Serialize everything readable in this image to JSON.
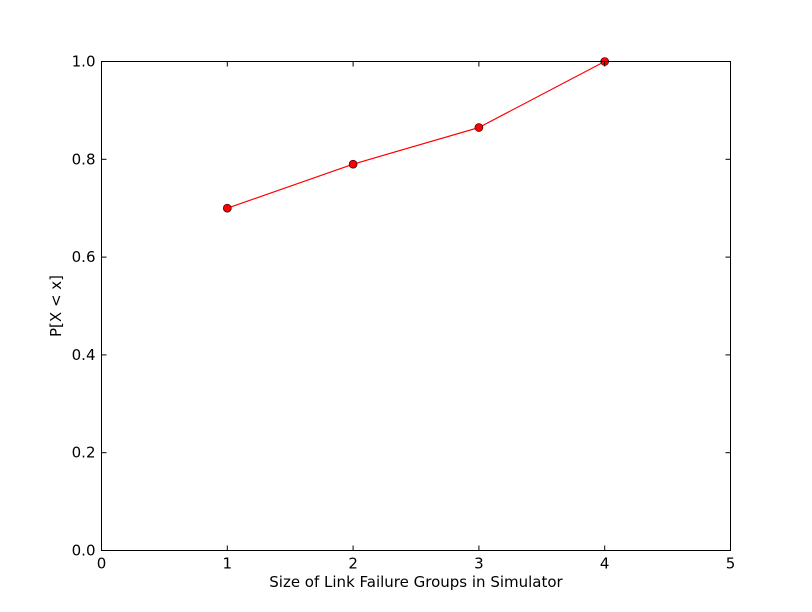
{
  "chart_data": {
    "type": "line",
    "title": "",
    "xlabel": "Size of Link Failure Groups in Simulator",
    "ylabel": "P[X < x]",
    "xlim": [
      0,
      5
    ],
    "ylim": [
      0.0,
      1.0
    ],
    "xticks": [
      "0",
      "1",
      "2",
      "3",
      "4",
      "5"
    ],
    "yticks": [
      "0.0",
      "0.2",
      "0.4",
      "0.6",
      "0.8",
      "1.0"
    ],
    "grid": false,
    "legend": "none",
    "series": [
      {
        "x": [
          1,
          2,
          3,
          4
        ],
        "values": [
          0.7,
          0.79,
          0.865,
          1.0
        ],
        "color": "#ff0000",
        "marker": "circle"
      }
    ]
  }
}
